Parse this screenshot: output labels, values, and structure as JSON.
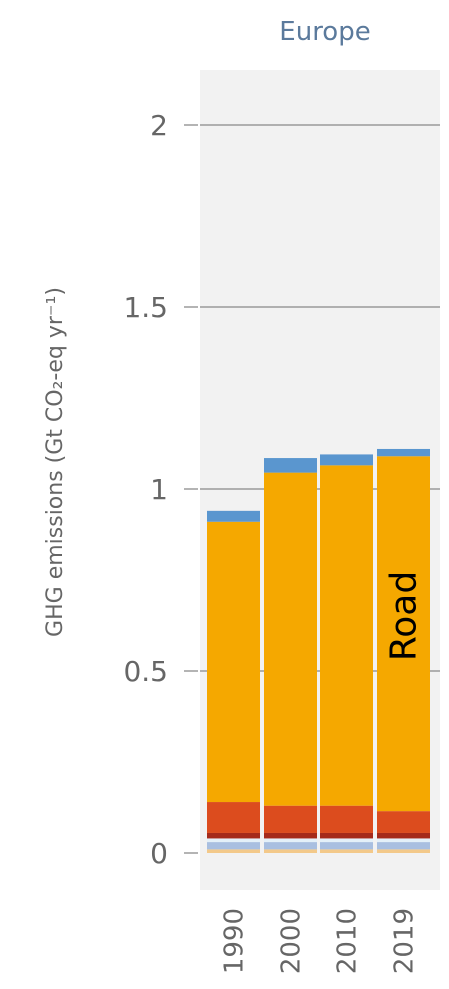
{
  "chart_data": {
    "type": "bar",
    "stacked": true,
    "title": "Europe",
    "ylabel": "GHG emissions (Gt CO₂-eq yr⁻¹)",
    "xlabel": "",
    "ylim": [
      0,
      2.1
    ],
    "yticks": [
      0,
      0.5,
      1,
      1.5,
      2
    ],
    "ytick_labels": [
      "0",
      "0.5",
      "1",
      "1.5",
      "2"
    ],
    "grid": true,
    "categories": [
      "1990",
      "2000",
      "2010",
      "2019"
    ],
    "series": [
      {
        "color": "#f3c98a",
        "values": [
          0.01,
          0.01,
          0.01,
          0.01
        ]
      },
      {
        "color": "#a9bfe0",
        "values": [
          0.02,
          0.02,
          0.02,
          0.02
        ]
      },
      {
        "color": "#e4f0f8",
        "values": [
          0.01,
          0.01,
          0.01,
          0.01
        ]
      },
      {
        "color": "#a52a1a",
        "values": [
          0.015,
          0.015,
          0.015,
          0.015
        ]
      },
      {
        "color": "#dc4c1e",
        "values": [
          0.085,
          0.075,
          0.075,
          0.06
        ]
      },
      {
        "name": "Road",
        "color": "#f5a800",
        "values": [
          0.77,
          0.915,
          0.935,
          0.975
        ]
      },
      {
        "color": "#5a96cf",
        "values": [
          0.03,
          0.04,
          0.03,
          0.02
        ]
      }
    ],
    "annotation": {
      "text": "Road",
      "category": "2019",
      "series": "Road"
    },
    "colors": {
      "background_panel": "#f2f2f2",
      "gridline": "#9a9a9a",
      "title": "#5b7a9c",
      "axis_text": "#666666"
    }
  }
}
